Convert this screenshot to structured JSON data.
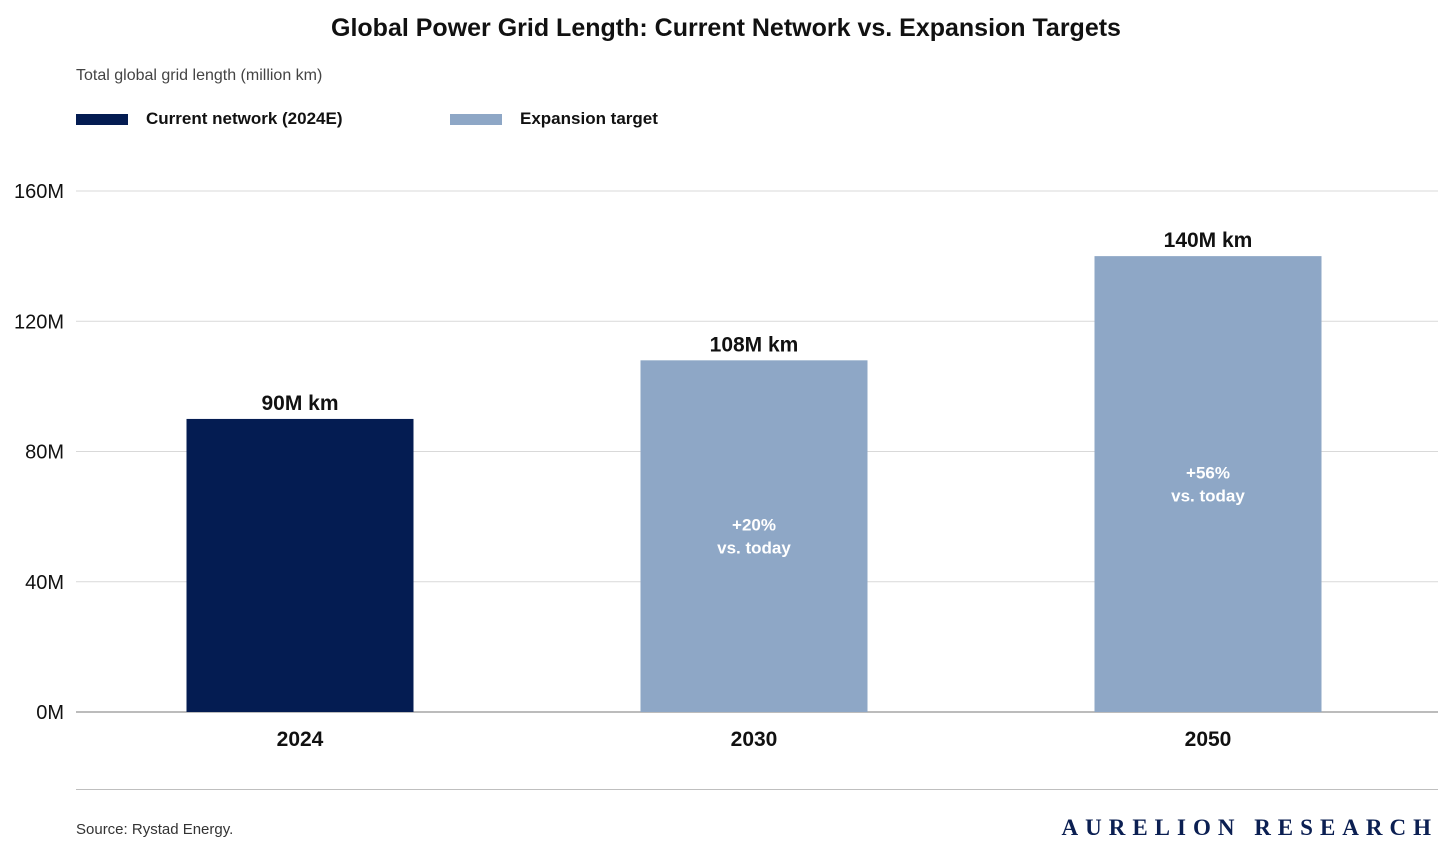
{
  "title": "Global Power Grid Length: Current Network vs. Expansion Targets",
  "subtitle": "Total global grid length (million km)",
  "legend": [
    {
      "label": "Current network (2024E)",
      "color": "#041c52"
    },
    {
      "label": "Expansion target",
      "color": "#8ea7c6"
    }
  ],
  "source": "Source: Rystad Energy.",
  "brand": "AURELION RESEARCH",
  "chart_data": {
    "type": "bar",
    "title": "Global Power Grid Length: Current Network vs. Expansion Targets",
    "ylabel": "Total global grid length (million km)",
    "xlabel": "",
    "categories": [
      "2024",
      "2030",
      "2050"
    ],
    "values": [
      90,
      108,
      140
    ],
    "bar_colors": [
      "#041c52",
      "#8ea7c6",
      "#8ea7c6"
    ],
    "value_labels": [
      "90M km",
      "108M km",
      "140M km"
    ],
    "inner_labels": [
      null,
      [
        "+20%",
        "vs. today"
      ],
      [
        "+56%",
        "vs. today"
      ]
    ],
    "ylim": [
      0,
      160
    ],
    "yticks": [
      0,
      40,
      80,
      120,
      160
    ],
    "ytick_labels": [
      "0M",
      "40M",
      "80M",
      "120M",
      "160M"
    ],
    "grid": true
  }
}
